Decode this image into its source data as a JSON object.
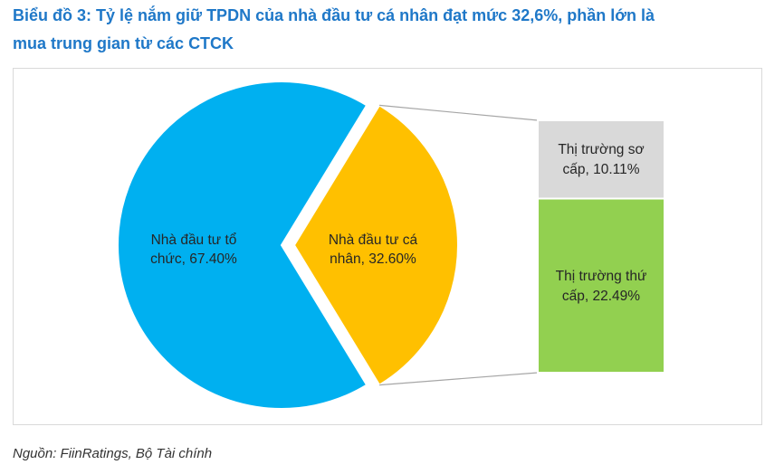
{
  "title_line1": "Biểu đồ 3: Tỷ lệ nắm giữ TPDN của nhà đầu tư cá nhân đạt mức 32,6%, phần lớn là",
  "title_line2": "mua trung gian từ các CTCK",
  "source": "Nguồn: FiinRatings, Bộ Tài chính",
  "colors": {
    "title": "#1f78c8",
    "to_chuc": "#00b0f0",
    "ca_nhan": "#ffc000",
    "so_cap": "#d9d9d9",
    "thu_cap": "#92d050",
    "connector": "#a6a6a6"
  },
  "chart_data": [
    {
      "type": "pie",
      "slices": [
        {
          "label_line1": "Nhà đầu tư tổ",
          "label_line2": "chức, 67.40%",
          "value": 67.4,
          "color": "#00b0f0"
        },
        {
          "label_line1": "Nhà đầu tư cá",
          "label_line2": "nhân, 32.60%",
          "value": 32.6,
          "color": "#ffc000",
          "exploded": true
        }
      ]
    },
    {
      "type": "bar",
      "stacked": true,
      "breakdown_of": "Nhà đầu tư cá nhân, 32.60%",
      "segments": [
        {
          "label_line1": "Thị trường sơ",
          "label_line2": "cấp, 10.11%",
          "value": 10.11,
          "color": "#d9d9d9"
        },
        {
          "label_line1": "Thị trường thứ",
          "label_line2": "cấp, 22.49%",
          "value": 22.49,
          "color": "#92d050"
        }
      ]
    }
  ]
}
